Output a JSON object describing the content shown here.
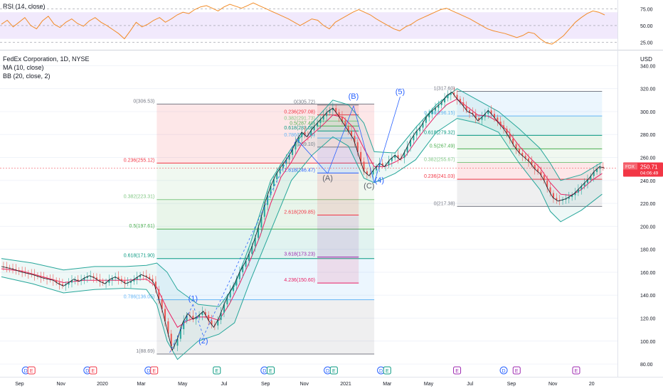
{
  "rsi_panel": {
    "title": "RSI (14, close)",
    "levels": [
      "75.00",
      "50.00",
      "25.00"
    ],
    "level_values": [
      75,
      50,
      25
    ],
    "band": [
      30,
      70
    ],
    "band_color": "#e8dafa",
    "line_color": "#f28c28"
  },
  "price_panel": {
    "title": "FedEx Corporation, 1D, NYSE",
    "indicators": [
      "MA (10, close)",
      "BB (20, close, 2)"
    ],
    "currency": "USD",
    "last_price": "250.71",
    "last_time": "04:06:49",
    "ticker": "FDX",
    "accent_color": "#f23645"
  },
  "chart_data": {
    "type": "line",
    "x_ticks": [
      "Sep",
      "Nov",
      "2020",
      "Mar",
      "May",
      "Jul",
      "Sep",
      "Nov",
      "2021",
      "Mar",
      "May",
      "Jul",
      "Sep",
      "Nov",
      "20"
    ],
    "y_ticks": [
      80,
      100,
      120,
      140,
      160,
      180,
      200,
      220,
      240,
      260,
      280,
      300,
      320,
      340
    ],
    "y_range": [
      72,
      352
    ],
    "price_path": [
      [
        0,
        165
      ],
      [
        2,
        163
      ],
      [
        4,
        160
      ],
      [
        6,
        158
      ],
      [
        8,
        155
      ],
      [
        10,
        153
      ],
      [
        11,
        150
      ],
      [
        12,
        148
      ],
      [
        13,
        151
      ],
      [
        14,
        154
      ],
      [
        15,
        152
      ],
      [
        16,
        155
      ],
      [
        17,
        157
      ],
      [
        18,
        155
      ],
      [
        19,
        152
      ],
      [
        20,
        150
      ],
      [
        21,
        154
      ],
      [
        22,
        156
      ],
      [
        23,
        153
      ],
      [
        24,
        150
      ],
      [
        25,
        152
      ],
      [
        26,
        155
      ],
      [
        27,
        158
      ],
      [
        28,
        156
      ],
      [
        29,
        153
      ],
      [
        29.5,
        150
      ],
      [
        30,
        142
      ],
      [
        31,
        128
      ],
      [
        32,
        110
      ],
      [
        33,
        92
      ],
      [
        34,
        102
      ],
      [
        35,
        116
      ],
      [
        36,
        124
      ],
      [
        37,
        119
      ],
      [
        38,
        122
      ],
      [
        39,
        126
      ],
      [
        40,
        118
      ],
      [
        41,
        112
      ],
      [
        42,
        120
      ],
      [
        43,
        132
      ],
      [
        44,
        142
      ],
      [
        45,
        150
      ],
      [
        46,
        160
      ],
      [
        47,
        168
      ],
      [
        48,
        178
      ],
      [
        49,
        190
      ],
      [
        50,
        205
      ],
      [
        51,
        222
      ],
      [
        52,
        235
      ],
      [
        53,
        245
      ],
      [
        54,
        252
      ],
      [
        55,
        258
      ],
      [
        56,
        265
      ],
      [
        57,
        275
      ],
      [
        58,
        282
      ],
      [
        59,
        278
      ],
      [
        60,
        285
      ],
      [
        61,
        290
      ],
      [
        62,
        295
      ],
      [
        63,
        300
      ],
      [
        64,
        303
      ],
      [
        65,
        297
      ],
      [
        66,
        290
      ],
      [
        67,
        283
      ],
      [
        68,
        276
      ],
      [
        69,
        262
      ],
      [
        70,
        248
      ],
      [
        71,
        244
      ],
      [
        72,
        250
      ],
      [
        73,
        255
      ],
      [
        74,
        252
      ],
      [
        75,
        258
      ],
      [
        76,
        262
      ],
      [
        77,
        258
      ],
      [
        78,
        266
      ],
      [
        79,
        275
      ],
      [
        80,
        282
      ],
      [
        81,
        287
      ],
      [
        82,
        295
      ],
      [
        83,
        300
      ],
      [
        84,
        304
      ],
      [
        85,
        308
      ],
      [
        86,
        314
      ],
      [
        87,
        317
      ],
      [
        88,
        311
      ],
      [
        89,
        306
      ],
      [
        90,
        300
      ],
      [
        91,
        298
      ],
      [
        92,
        292
      ],
      [
        93,
        296
      ],
      [
        94,
        301
      ],
      [
        95,
        296
      ],
      [
        96,
        290
      ],
      [
        97,
        285
      ],
      [
        98,
        278
      ],
      [
        99,
        270
      ],
      [
        100,
        264
      ],
      [
        101,
        260
      ],
      [
        102,
        256
      ],
      [
        103,
        250
      ],
      [
        104,
        246
      ],
      [
        104.8,
        240
      ],
      [
        105.5,
        233
      ],
      [
        106.5,
        225
      ],
      [
        107.5,
        222
      ],
      [
        109,
        224
      ],
      [
        110.5,
        228
      ],
      [
        112,
        235
      ],
      [
        113.5,
        242
      ],
      [
        114.5,
        248
      ],
      [
        115.5,
        252
      ],
      [
        116.5,
        250.7
      ]
    ],
    "ma_path": [
      [
        0,
        163
      ],
      [
        4,
        161
      ],
      [
        8,
        156
      ],
      [
        12,
        151
      ],
      [
        16,
        153
      ],
      [
        20,
        153
      ],
      [
        24,
        153
      ],
      [
        28,
        154
      ],
      [
        30,
        147
      ],
      [
        32,
        128
      ],
      [
        34,
        112
      ],
      [
        36,
        118
      ],
      [
        38,
        121
      ],
      [
        40,
        121
      ],
      [
        42,
        118
      ],
      [
        44,
        132
      ],
      [
        46,
        150
      ],
      [
        48,
        170
      ],
      [
        50,
        192
      ],
      [
        52,
        220
      ],
      [
        54,
        243
      ],
      [
        56,
        256
      ],
      [
        58,
        272
      ],
      [
        60,
        280
      ],
      [
        62,
        288
      ],
      [
        64,
        297
      ],
      [
        66,
        295
      ],
      [
        68,
        286
      ],
      [
        70,
        268
      ],
      [
        72,
        252
      ],
      [
        74,
        252
      ],
      [
        76,
        256
      ],
      [
        78,
        261
      ],
      [
        80,
        274
      ],
      [
        82,
        286
      ],
      [
        84,
        297
      ],
      [
        86,
        306
      ],
      [
        88,
        311
      ],
      [
        90,
        304
      ],
      [
        92,
        297
      ],
      [
        94,
        296
      ],
      [
        96,
        291
      ],
      [
        98,
        282
      ],
      [
        100,
        270
      ],
      [
        102,
        260
      ],
      [
        104,
        251
      ],
      [
        106,
        238
      ],
      [
        108,
        228
      ],
      [
        110,
        227
      ],
      [
        112,
        232
      ],
      [
        114,
        240
      ],
      [
        116,
        246
      ]
    ],
    "bb_upper": [
      [
        0,
        172
      ],
      [
        6,
        168
      ],
      [
        12,
        162
      ],
      [
        18,
        165
      ],
      [
        24,
        165
      ],
      [
        28,
        166
      ],
      [
        30,
        168
      ],
      [
        32,
        160
      ],
      [
        34,
        145
      ],
      [
        38,
        132
      ],
      [
        42,
        130
      ],
      [
        45,
        148
      ],
      [
        48,
        184
      ],
      [
        52,
        240
      ],
      [
        56,
        268
      ],
      [
        60,
        290
      ],
      [
        64,
        310
      ],
      [
        67,
        306
      ],
      [
        70,
        290
      ],
      [
        72,
        265
      ],
      [
        76,
        264
      ],
      [
        80,
        286
      ],
      [
        84,
        306
      ],
      [
        88,
        320
      ],
      [
        92,
        310
      ],
      [
        96,
        300
      ],
      [
        100,
        285
      ],
      [
        104,
        268
      ],
      [
        106,
        255
      ],
      [
        108,
        240
      ],
      [
        112,
        245
      ],
      [
        116,
        256
      ]
    ],
    "bb_lower": [
      [
        0,
        156
      ],
      [
        6,
        150
      ],
      [
        12,
        142
      ],
      [
        18,
        145
      ],
      [
        24,
        146
      ],
      [
        28,
        145
      ],
      [
        30,
        132
      ],
      [
        32,
        100
      ],
      [
        34,
        84
      ],
      [
        38,
        100
      ],
      [
        42,
        106
      ],
      [
        45,
        116
      ],
      [
        48,
        152
      ],
      [
        52,
        196
      ],
      [
        56,
        240
      ],
      [
        60,
        262
      ],
      [
        64,
        278
      ],
      [
        67,
        270
      ],
      [
        70,
        242
      ],
      [
        72,
        238
      ],
      [
        76,
        246
      ],
      [
        80,
        258
      ],
      [
        84,
        282
      ],
      [
        88,
        294
      ],
      [
        92,
        290
      ],
      [
        96,
        282
      ],
      [
        100,
        255
      ],
      [
        104,
        232
      ],
      [
        106,
        213
      ],
      [
        108,
        204
      ],
      [
        112,
        214
      ],
      [
        116,
        228
      ]
    ],
    "fib_sets": [
      {
        "name": "fib-1",
        "x_from": 30,
        "x_to": 72,
        "levels": [
          {
            "label": "0(306.53)",
            "price": 306.53,
            "color": "#787b86"
          },
          {
            "label": "0.236(255.12)",
            "price": 255.12,
            "color": "#f23645"
          },
          {
            "label": "0.382(223.31)",
            "price": 223.31,
            "color": "#81c784"
          },
          {
            "label": "0.5(197.61)",
            "price": 197.61,
            "color": "#4caf50"
          },
          {
            "label": "0.618(171.90)",
            "price": 171.9,
            "color": "#089981"
          },
          {
            "label": "0.786(136.05)",
            "price": 136.05,
            "color": "#64b5f6"
          },
          {
            "label": "1(88.69)",
            "price": 88.69,
            "color": "#787b86"
          }
        ]
      },
      {
        "name": "fib-2",
        "x_from": 61,
        "x_to": 69,
        "levels": [
          {
            "label": "0(305.72)",
            "price": 305.72,
            "color": "#787b86"
          },
          {
            "label": "0.236(297.08)",
            "price": 297.08,
            "color": "#f23645"
          },
          {
            "label": "0.382(291.73)",
            "price": 291.73,
            "color": "#81c784"
          },
          {
            "label": "0.5(287.40)",
            "price": 287.4,
            "color": "#4caf50"
          },
          {
            "label": "0.618(283.09)",
            "price": 283.09,
            "color": "#089981"
          },
          {
            "label": "0.786(276.94)",
            "price": 276.94,
            "color": "#64b5f6"
          },
          {
            "label": "1(269.10)",
            "price": 269.1,
            "color": "#787b86"
          },
          {
            "label": "1.618(246.47)",
            "price": 246.47,
            "color": "#2962ff"
          },
          {
            "label": "2.618(209.85)",
            "price": 209.85,
            "color": "#f23645"
          },
          {
            "label": "3.618(173.23)",
            "price": 173.23,
            "color": "#9c27b0"
          },
          {
            "label": "4.236(150.60)",
            "price": 150.6,
            "color": "#e91e63"
          }
        ]
      },
      {
        "name": "fib-3",
        "x_from": 88,
        "x_to": 116,
        "levels": [
          {
            "label": "1(317.60)",
            "price": 317.6,
            "color": "#787b86"
          },
          {
            "label": "0.786(296.15)",
            "price": 296.15,
            "color": "#64b5f6"
          },
          {
            "label": "0.618(279.32)",
            "price": 279.32,
            "color": "#089981"
          },
          {
            "label": "0.5(267.49)",
            "price": 267.49,
            "color": "#4caf50"
          },
          {
            "label": "0.382(255.67)",
            "price": 255.67,
            "color": "#81c784"
          },
          {
            "label": "0.236(241.03)",
            "price": 241.03,
            "color": "#f23645"
          },
          {
            "label": "0(217.38)",
            "price": 217.38,
            "color": "#787b86"
          }
        ]
      }
    ],
    "wave_labels": [
      {
        "text": "(1)",
        "x": 37,
        "y": 135,
        "color": "#2962ff"
      },
      {
        "text": "(2)",
        "x": 39,
        "y": 98,
        "color": "#2962ff"
      },
      {
        "text": "(A)",
        "x": 63,
        "y": 240,
        "color": "#5d606b"
      },
      {
        "text": "(B)",
        "x": 68,
        "y": 311,
        "color": "#2962ff"
      },
      {
        "text": "(C)",
        "x": 71,
        "y": 233,
        "color": "#5d606b"
      },
      {
        "text": "(4)",
        "x": 73,
        "y": 238,
        "color": "#2962ff"
      },
      {
        "text": "(5)",
        "x": 77,
        "y": 315,
        "color": "#2962ff"
      }
    ],
    "rsi_values": [
      52,
      58,
      48,
      55,
      62,
      50,
      45,
      57,
      64,
      52,
      47,
      55,
      60,
      53,
      49,
      57,
      62,
      55,
      50,
      44,
      38,
      30,
      42,
      55,
      48,
      52,
      58,
      62,
      55,
      60,
      66,
      70,
      68,
      74,
      78,
      80,
      76,
      72,
      78,
      82,
      79,
      76,
      80,
      84,
      80,
      76,
      72,
      68,
      64,
      60,
      55,
      50,
      55,
      60,
      58,
      50,
      45,
      55,
      60,
      65,
      70,
      74,
      70,
      66,
      60,
      55,
      50,
      45,
      42,
      48,
      52,
      58,
      62,
      66,
      70,
      74,
      76,
      72,
      68,
      64,
      60,
      55,
      50,
      45,
      42,
      40,
      38,
      35,
      32,
      35,
      40,
      38,
      30,
      24,
      22,
      28,
      35,
      45,
      55,
      62,
      68,
      72,
      70,
      66
    ]
  },
  "events": {
    "labels": [
      "D",
      "E",
      "D",
      "E",
      "D",
      "E",
      "E",
      "D",
      "E",
      "D",
      "E",
      "D",
      "E",
      "E",
      "D",
      "E",
      "E"
    ]
  }
}
